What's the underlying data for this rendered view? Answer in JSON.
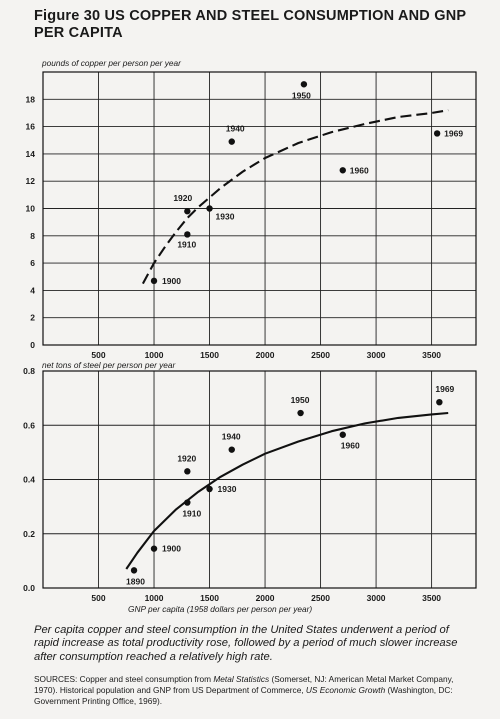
{
  "figure_title": "Figure 30 US COPPER AND STEEL CONSUMPTION AND GNP PER CAPITA",
  "caption": "Per capita copper and steel consumption in the United States underwent a period of rapid increase as total productivity rose, followed by a period of much slower increase after consumption reached a relatively high rate.",
  "sources": {
    "prefix": "SOURCES: Copper and steel consumption from ",
    "metal_statistics": "Metal Statistics",
    "mid1": " (Somerset, NJ: American Metal Market Company, 1970). Historical population and GNP from US Department of Commerce, ",
    "economic_growth": "US Economic Growth",
    "suffix": " (Washington, DC: Government Printing Office, 1969)."
  },
  "chart_data": [
    {
      "type": "scatter",
      "ylabel": "pounds of copper per person per year",
      "xlabel": "",
      "xlim": [
        0,
        3900
      ],
      "ylim": [
        0,
        20
      ],
      "x_ticks": [
        500,
        1000,
        1500,
        2000,
        2500,
        3000,
        3500
      ],
      "y_ticks": [
        0,
        2,
        4,
        6,
        8,
        10,
        12,
        14,
        16,
        18
      ],
      "grid": true,
      "points": [
        {
          "label": "1900",
          "x": 1000,
          "y": 4.7
        },
        {
          "label": "1910",
          "x": 1300,
          "y": 8.1
        },
        {
          "label": "1920",
          "x": 1300,
          "y": 9.8
        },
        {
          "label": "1930",
          "x": 1500,
          "y": 10.0
        },
        {
          "label": "1940",
          "x": 1700,
          "y": 14.9
        },
        {
          "label": "1950",
          "x": 2350,
          "y": 19.1
        },
        {
          "label": "1960",
          "x": 2700,
          "y": 12.8
        },
        {
          "label": "1969",
          "x": 3550,
          "y": 15.5
        }
      ],
      "trend": {
        "style": "dashed",
        "x": [
          900,
          1000,
          1100,
          1200,
          1300,
          1400,
          1600,
          1800,
          2000,
          2300,
          2600,
          2900,
          3200,
          3500,
          3650
        ],
        "y": [
          4.5,
          6.0,
          7.2,
          8.3,
          9.3,
          10.1,
          11.5,
          12.7,
          13.7,
          14.8,
          15.6,
          16.2,
          16.7,
          17.0,
          17.2
        ]
      }
    },
    {
      "type": "scatter",
      "ylabel": "net tons of steel per person per year",
      "xlabel": "GNP per capita (1958 dollars per person per year)",
      "xlim": [
        0,
        3900
      ],
      "ylim": [
        0,
        0.8
      ],
      "x_ticks": [
        500,
        1000,
        1500,
        2000,
        2500,
        3000,
        3500
      ],
      "y_ticks": [
        0,
        0.2,
        0.4,
        0.6,
        0.8
      ],
      "grid": true,
      "points": [
        {
          "label": "1890",
          "x": 820,
          "y": 0.065
        },
        {
          "label": "1900",
          "x": 1000,
          "y": 0.145
        },
        {
          "label": "1910",
          "x": 1300,
          "y": 0.315
        },
        {
          "label": "1920",
          "x": 1300,
          "y": 0.43
        },
        {
          "label": "1930",
          "x": 1500,
          "y": 0.365
        },
        {
          "label": "1940",
          "x": 1700,
          "y": 0.51
        },
        {
          "label": "1950",
          "x": 2320,
          "y": 0.645
        },
        {
          "label": "1960",
          "x": 2700,
          "y": 0.565
        },
        {
          "label": "1969",
          "x": 3570,
          "y": 0.685
        }
      ],
      "trend": {
        "style": "solid",
        "x": [
          750,
          850,
          1000,
          1200,
          1400,
          1600,
          1800,
          2000,
          2300,
          2600,
          2900,
          3200,
          3500,
          3650
        ],
        "y": [
          0.07,
          0.13,
          0.21,
          0.29,
          0.355,
          0.41,
          0.455,
          0.495,
          0.54,
          0.578,
          0.607,
          0.627,
          0.64,
          0.645
        ]
      }
    }
  ]
}
